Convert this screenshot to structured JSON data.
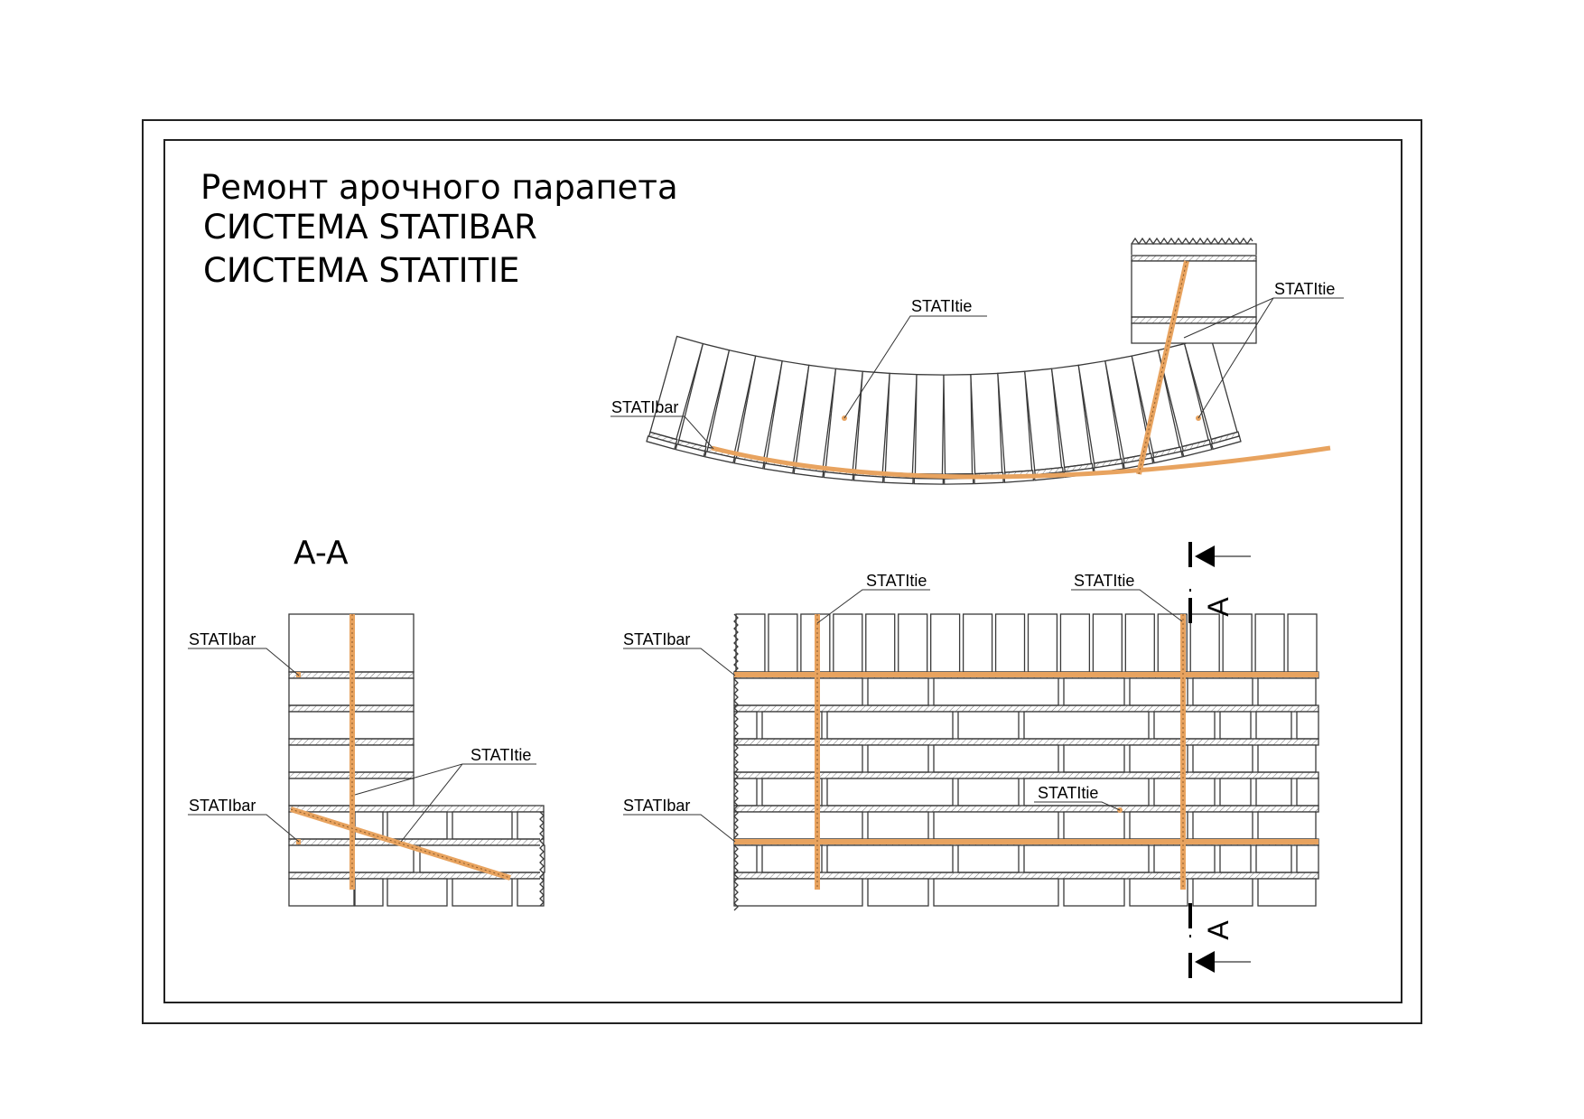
{
  "title": {
    "line1": "Ремонт арочного парапета",
    "line2": "СИСТЕМА STATIBAR",
    "line3": "СИСТЕМА STATITIE"
  },
  "section_title": "A-A",
  "section_mark": "A",
  "labels": {
    "arch_statitie_left": "STATItie",
    "arch_statitie_right": "STATItie",
    "arch_statibar": "STATIbar",
    "aa_statibar_top": "STATIbar",
    "aa_statibar_bottom": "STATIbar",
    "aa_statitie": "STATItie",
    "wall_statitie_left": "STATItie",
    "wall_statitie_right": "STATItie",
    "wall_statibar_top": "STATIbar",
    "wall_statibar_bottom": "STATIbar",
    "wall_statitie_middle": "STATItie"
  },
  "colors": {
    "reinforcement": "#e8a35f",
    "lines": "#3a3a3a"
  }
}
